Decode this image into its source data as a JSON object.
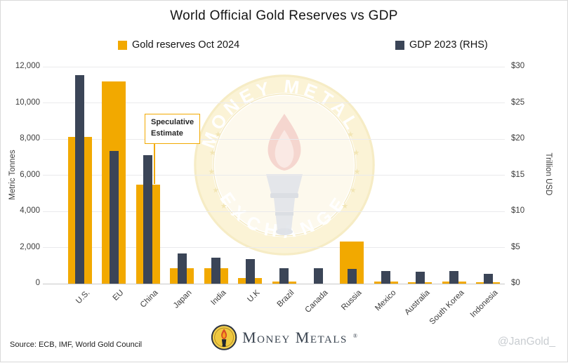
{
  "title": "World Official Gold Reserves vs GDP",
  "chart_data": {
    "type": "bar",
    "title": "World Official Gold Reserves vs GDP",
    "categories": [
      "U.S.",
      "EU",
      "China",
      "Japan",
      "India",
      "U.K",
      "Brazil",
      "Canada",
      "Russia",
      "Mexico",
      "Australia",
      "South Korea",
      "Indonesia"
    ],
    "series": [
      {
        "name": "Gold reserves Oct 2024",
        "axis": "left",
        "unit": "metric tonnes",
        "color": "#F2A900",
        "values": [
          8133,
          11180,
          5475,
          846,
          854,
          310,
          130,
          0,
          2336,
          120,
          80,
          104,
          79
        ]
      },
      {
        "name": "GDP 2023 (RHS)",
        "axis": "right",
        "unit": "trillion USD",
        "color": "#3B4557",
        "values": [
          28.8,
          18.4,
          17.8,
          4.2,
          3.55,
          3.4,
          2.15,
          2.1,
          2.0,
          1.8,
          1.7,
          1.75,
          1.4
        ]
      }
    ],
    "left_axis": {
      "label": "Metric Tonnes",
      "min": 0,
      "max": 12000,
      "ticks": [
        "0",
        "2,000",
        "4,000",
        "6,000",
        "8,000",
        "10,000",
        "12,000"
      ]
    },
    "right_axis": {
      "label": "Trillion USD",
      "min": 0,
      "max": 30,
      "ticks": [
        "$0",
        "$5",
        "$10",
        "$15",
        "$20",
        "$25",
        "$30"
      ]
    },
    "grid": true,
    "legend_position": "top",
    "annotation": {
      "text": "Speculative Estimate",
      "target_category": "China",
      "target_series": "Gold reserves Oct 2024"
    }
  },
  "annotation": {
    "line1": "Speculative",
    "line2": "Estimate"
  },
  "watermark": {
    "arc_top": "MONEY METALS",
    "arc_bottom": "EXCHANGE"
  },
  "footer": {
    "source": "Source: ECB, IMF, World Gold Council",
    "brand": "Money Metals",
    "registered": "®",
    "handle": "@JanGold_"
  }
}
